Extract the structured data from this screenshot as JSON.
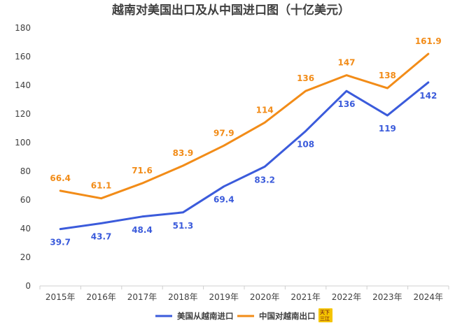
{
  "chart_data": {
    "type": "line",
    "title": "越南对美国出口及从中国进口图（十亿美元）",
    "categories": [
      "2015年",
      "2016年",
      "2017年",
      "2018年",
      "2019年",
      "2020年",
      "2021年",
      "2022年",
      "2023年",
      "2024年"
    ],
    "series": [
      {
        "name": "美国从越南进口",
        "color": "#3b5bdb",
        "values": [
          39.7,
          43.7,
          48.4,
          51.3,
          69.4,
          83.2,
          108,
          136,
          119,
          142
        ],
        "labels": [
          "39.7",
          "43.7",
          "48.4",
          "51.3",
          "69.4",
          "83.2",
          "108",
          "136",
          "119",
          "142"
        ],
        "label_position": "below"
      },
      {
        "name": "中国对越南出口",
        "color": "#f28c18",
        "values": [
          66.4,
          61.1,
          71.6,
          83.9,
          97.9,
          114,
          136,
          147,
          138,
          161.9
        ],
        "labels": [
          "66.4",
          "61.1",
          "71.6",
          "83.9",
          "97.9",
          "114",
          "136",
          "147",
          "138",
          "161.9"
        ],
        "label_position": "above"
      }
    ],
    "yticks": [
      "0",
      "20",
      "40",
      "60",
      "80",
      "100",
      "120",
      "140",
      "160",
      "180"
    ],
    "ylim": [
      0,
      180
    ],
    "grid": false,
    "legend": "bottom"
  },
  "watermark": {
    "text": "天下三江"
  }
}
